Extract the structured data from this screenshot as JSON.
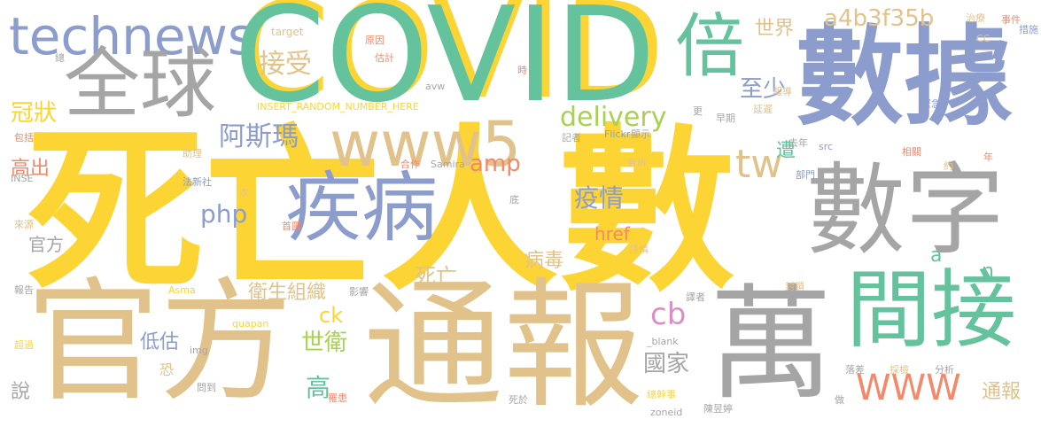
{
  "palette": {
    "yellow": "#fcd535",
    "green": "#64c29d",
    "blue": "#8b9ccd",
    "gray": "#a5a5a5",
    "tan": "#e2c28b",
    "orange": "#f2896a",
    "lime": "#a9d150",
    "pink": "#dc8fc2"
  },
  "words": [
    {
      "text": "COVID",
      "color": "yellow"
    },
    {
      "text": "死亡人數",
      "color": "yellow"
    },
    {
      "text": "technews",
      "color": "blue"
    },
    {
      "text": "全球",
      "color": "gray"
    },
    {
      "text": "COVID",
      "color": "green"
    },
    {
      "text": "倍",
      "color": "green"
    },
    {
      "text": "數據",
      "color": "blue"
    },
    {
      "text": "數字",
      "color": "gray"
    },
    {
      "text": "官方",
      "color": "tan"
    },
    {
      "text": "通報",
      "color": "tan"
    },
    {
      "text": "萬",
      "color": "gray"
    },
    {
      "text": "間接",
      "color": "green"
    },
    {
      "text": "疾病",
      "color": "blue"
    },
    {
      "text": "www5",
      "color": "tan"
    },
    {
      "text": "delivery",
      "color": "lime"
    },
    {
      "text": "a4b3f35b",
      "color": "tan"
    },
    {
      "text": "世界",
      "color": "tan"
    },
    {
      "text": "至少",
      "color": "blue"
    },
    {
      "text": "接受",
      "color": "tan"
    },
    {
      "text": "冠狀",
      "color": "yellow"
    },
    {
      "text": "阿斯瑪",
      "color": "blue"
    },
    {
      "text": "tw",
      "color": "tan"
    },
    {
      "text": "遭",
      "color": "green"
    },
    {
      "text": "高出",
      "color": "orange"
    },
    {
      "text": "amp",
      "color": "orange"
    },
    {
      "text": "php",
      "color": "blue"
    },
    {
      "text": "疫情",
      "color": "blue"
    },
    {
      "text": "href",
      "color": "orange"
    },
    {
      "text": "病毒",
      "color": "tan"
    },
    {
      "text": "死亡",
      "color": "tan"
    },
    {
      "text": "衛生組織",
      "color": "tan"
    },
    {
      "text": "官方",
      "color": "gray"
    },
    {
      "text": "cb",
      "color": "pink"
    },
    {
      "text": "國家",
      "color": "gray"
    },
    {
      "text": "WWW",
      "color": "orange"
    },
    {
      "text": "通報",
      "color": "tan"
    },
    {
      "text": "世衛",
      "color": "lime"
    },
    {
      "text": "低估",
      "color": "blue"
    },
    {
      "text": "高",
      "color": "green"
    },
    {
      "text": "ck",
      "color": "yellow"
    },
    {
      "text": "恐",
      "color": "tan"
    },
    {
      "text": "說",
      "color": "gray"
    },
    {
      "text": "a",
      "color": "green"
    },
    {
      "text": "n",
      "color": "green"
    },
    {
      "text": "INSERT_RANDOM_NUMBER_HERE",
      "color": "yellow"
    },
    {
      "text": "target",
      "color": "tan"
    },
    {
      "text": "原因",
      "color": "orange"
    },
    {
      "text": "估計",
      "color": "orange"
    },
    {
      "text": "avw",
      "color": "gray"
    },
    {
      "text": "時",
      "color": "orange"
    },
    {
      "text": "治療",
      "color": "tan"
    },
    {
      "text": "事件",
      "color": "orange"
    },
    {
      "text": "CC",
      "color": "tan"
    },
    {
      "text": "措施",
      "color": "blue"
    },
    {
      "text": "總",
      "color": "gray"
    },
    {
      "text": "報導",
      "color": "tan"
    },
    {
      "text": "更",
      "color": "gray"
    },
    {
      "text": "早期",
      "color": "gray"
    },
    {
      "text": "延遲",
      "color": "tan"
    },
    {
      "text": "緊急",
      "color": "blue"
    },
    {
      "text": "記者",
      "color": "gray"
    },
    {
      "text": "Flickr",
      "color": "blue"
    },
    {
      "text": "顯示",
      "color": "gray"
    },
    {
      "text": "去年",
      "color": "gray"
    },
    {
      "text": "src",
      "color": "blue"
    },
    {
      "text": "相關",
      "color": "orange"
    },
    {
      "text": "約",
      "color": "tan"
    },
    {
      "text": "年",
      "color": "orange"
    },
    {
      "text": "包括",
      "color": "orange"
    },
    {
      "text": "助理",
      "color": "tan"
    },
    {
      "text": "合作",
      "color": "orange"
    },
    {
      "text": "Samira",
      "color": "gray"
    },
    {
      "text": "告訴",
      "color": "tan"
    },
    {
      "text": "部門",
      "color": "blue"
    },
    {
      "text": "INSE",
      "color": "gray"
    },
    {
      "text": "法新社",
      "color": "blue"
    },
    {
      "text": "次",
      "color": "tan"
    },
    {
      "text": "底",
      "color": "gray"
    },
    {
      "text": "來源",
      "color": "tan"
    },
    {
      "text": "首圖",
      "color": "orange"
    },
    {
      "text": "謹慎",
      "color": "tan"
    },
    {
      "text": "報告",
      "color": "gray"
    },
    {
      "text": "Asma",
      "color": "yellow"
    },
    {
      "text": "影響",
      "color": "gray"
    },
    {
      "text": "封鎖",
      "color": "tan"
    },
    {
      "text": "譯者",
      "color": "gray"
    },
    {
      "text": "quapan",
      "color": "yellow"
    },
    {
      "text": "_blank",
      "color": "gray"
    },
    {
      "text": "超過",
      "color": "yellow"
    },
    {
      "text": "img",
      "color": "gray"
    },
    {
      "text": "落差",
      "color": "gray"
    },
    {
      "text": "採檢",
      "color": "tan"
    },
    {
      "text": "分析",
      "color": "gray"
    },
    {
      "text": "問到",
      "color": "gray"
    },
    {
      "text": "死於",
      "color": "gray"
    },
    {
      "text": "罹患",
      "color": "orange"
    },
    {
      "text": "總幹事",
      "color": "yellow"
    },
    {
      "text": "做",
      "color": "gray"
    },
    {
      "text": "陳昱婷",
      "color": "gray"
    },
    {
      "text": "zoneid",
      "color": "gray"
    }
  ]
}
